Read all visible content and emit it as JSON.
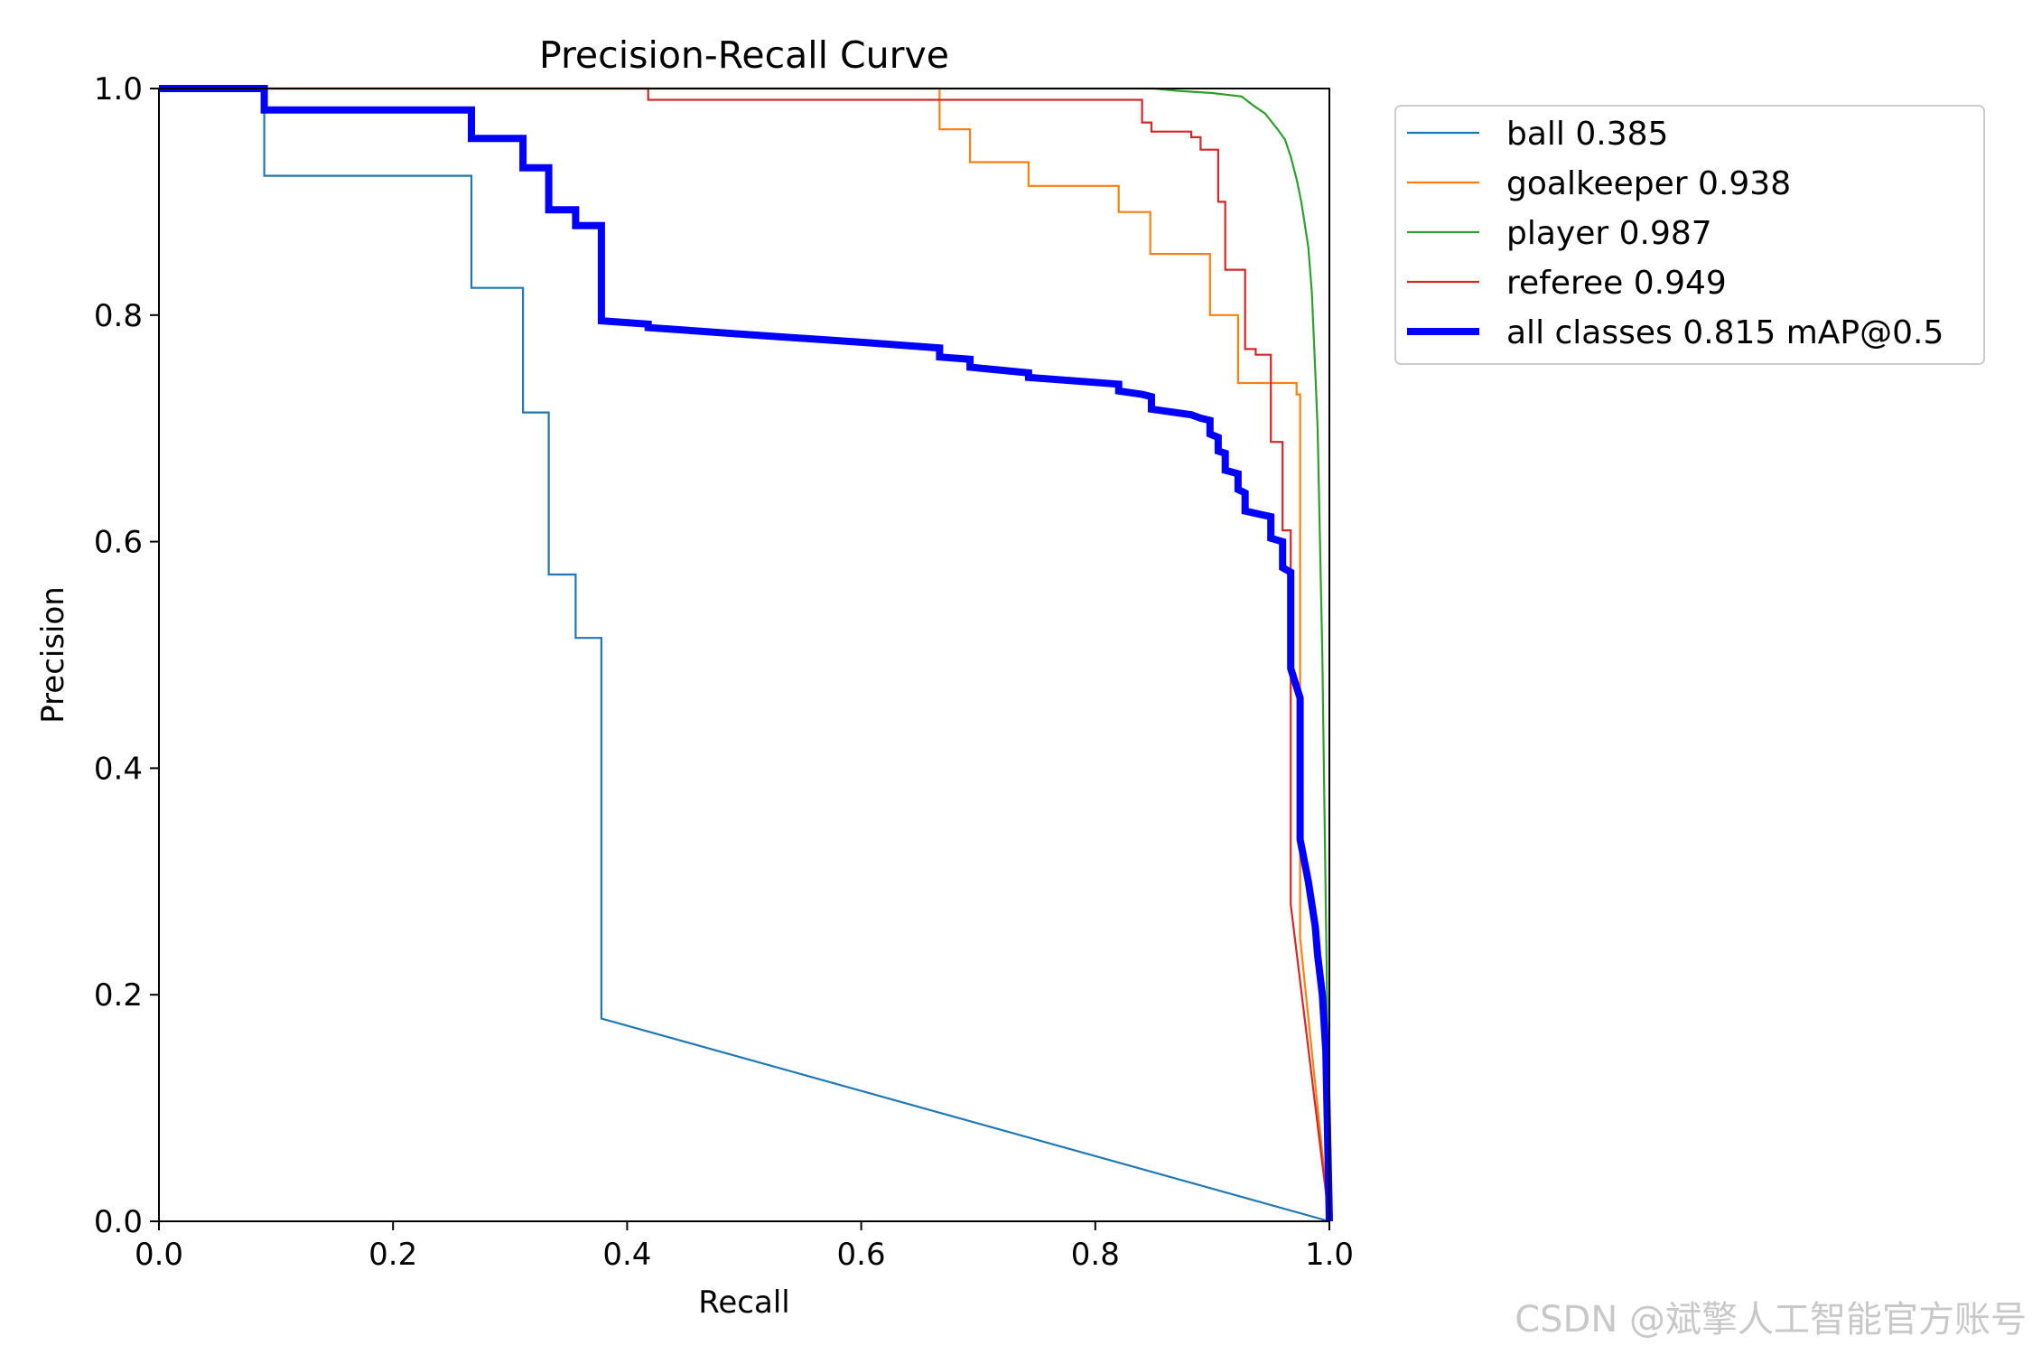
{
  "chart_data": {
    "type": "line",
    "title": "Precision-Recall Curve",
    "xlabel": "Recall",
    "ylabel": "Precision",
    "xlim": [
      0.0,
      1.0
    ],
    "ylim": [
      0.0,
      1.0
    ],
    "xticks": [
      "0.0",
      "0.2",
      "0.4",
      "0.6",
      "0.8",
      "1.0"
    ],
    "yticks": [
      "0.0",
      "0.2",
      "0.4",
      "0.6",
      "0.8",
      "1.0"
    ],
    "grid": false,
    "legend_position": "outside-right-top",
    "series": [
      {
        "name": "ball 0.385",
        "color": "#1f77b4",
        "width": "thin",
        "points": [
          [
            0.0,
            1.0
          ],
          [
            0.09,
            1.0
          ],
          [
            0.09,
            0.923
          ],
          [
            0.267,
            0.923
          ],
          [
            0.267,
            0.824
          ],
          [
            0.311,
            0.824
          ],
          [
            0.311,
            0.714
          ],
          [
            0.333,
            0.714
          ],
          [
            0.333,
            0.571
          ],
          [
            0.356,
            0.571
          ],
          [
            0.356,
            0.515
          ],
          [
            0.378,
            0.515
          ],
          [
            0.378,
            0.179
          ],
          [
            1.0,
            0.0
          ]
        ]
      },
      {
        "name": "goalkeeper 0.938",
        "color": "#ff7f0e",
        "width": "thin",
        "points": [
          [
            0.0,
            1.0
          ],
          [
            0.667,
            1.0
          ],
          [
            0.667,
            0.964
          ],
          [
            0.693,
            0.964
          ],
          [
            0.693,
            0.935
          ],
          [
            0.743,
            0.935
          ],
          [
            0.743,
            0.914
          ],
          [
            0.82,
            0.914
          ],
          [
            0.82,
            0.891
          ],
          [
            0.847,
            0.891
          ],
          [
            0.847,
            0.854
          ],
          [
            0.898,
            0.854
          ],
          [
            0.898,
            0.8
          ],
          [
            0.922,
            0.8
          ],
          [
            0.922,
            0.74
          ],
          [
            0.972,
            0.74
          ],
          [
            0.972,
            0.73
          ],
          [
            0.975,
            0.73
          ],
          [
            0.975,
            0.25
          ],
          [
            1.0,
            0.0
          ]
        ]
      },
      {
        "name": "player 0.987",
        "color": "#2ca02c",
        "width": "thin",
        "points": [
          [
            0.0,
            1.0
          ],
          [
            0.85,
            1.0
          ],
          [
            0.87,
            0.998
          ],
          [
            0.9,
            0.996
          ],
          [
            0.925,
            0.993
          ],
          [
            0.935,
            0.985
          ],
          [
            0.945,
            0.978
          ],
          [
            0.955,
            0.965
          ],
          [
            0.962,
            0.955
          ],
          [
            0.967,
            0.94
          ],
          [
            0.972,
            0.92
          ],
          [
            0.976,
            0.9
          ],
          [
            0.979,
            0.88
          ],
          [
            0.982,
            0.86
          ],
          [
            0.985,
            0.82
          ],
          [
            0.988,
            0.75
          ],
          [
            0.99,
            0.7
          ],
          [
            0.992,
            0.6
          ],
          [
            0.994,
            0.5
          ],
          [
            0.996,
            0.35
          ],
          [
            0.998,
            0.2
          ],
          [
            1.0,
            0.0
          ]
        ]
      },
      {
        "name": "referee 0.949",
        "color": "#d62728",
        "width": "thin",
        "points": [
          [
            0.0,
            1.0
          ],
          [
            0.418,
            1.0
          ],
          [
            0.418,
            0.99
          ],
          [
            0.84,
            0.99
          ],
          [
            0.84,
            0.97
          ],
          [
            0.848,
            0.97
          ],
          [
            0.848,
            0.962
          ],
          [
            0.882,
            0.962
          ],
          [
            0.882,
            0.957
          ],
          [
            0.89,
            0.957
          ],
          [
            0.89,
            0.946
          ],
          [
            0.905,
            0.946
          ],
          [
            0.905,
            0.9
          ],
          [
            0.911,
            0.9
          ],
          [
            0.911,
            0.84
          ],
          [
            0.928,
            0.84
          ],
          [
            0.928,
            0.77
          ],
          [
            0.937,
            0.77
          ],
          [
            0.937,
            0.765
          ],
          [
            0.95,
            0.765
          ],
          [
            0.95,
            0.688
          ],
          [
            0.96,
            0.688
          ],
          [
            0.96,
            0.61
          ],
          [
            0.967,
            0.61
          ],
          [
            0.967,
            0.28
          ],
          [
            1.0,
            0.0
          ]
        ]
      },
      {
        "name": "all classes 0.815 mAP@0.5",
        "color": "#0000ff",
        "width": "thick",
        "points": [
          [
            0.0,
            1.0
          ],
          [
            0.09,
            1.0
          ],
          [
            0.09,
            0.981
          ],
          [
            0.267,
            0.981
          ],
          [
            0.267,
            0.956
          ],
          [
            0.311,
            0.956
          ],
          [
            0.311,
            0.93
          ],
          [
            0.333,
            0.93
          ],
          [
            0.333,
            0.893
          ],
          [
            0.356,
            0.893
          ],
          [
            0.356,
            0.879
          ],
          [
            0.378,
            0.879
          ],
          [
            0.378,
            0.795
          ],
          [
            0.418,
            0.792
          ],
          [
            0.418,
            0.789
          ],
          [
            0.5,
            0.783
          ],
          [
            0.6,
            0.776
          ],
          [
            0.667,
            0.771
          ],
          [
            0.667,
            0.763
          ],
          [
            0.693,
            0.761
          ],
          [
            0.693,
            0.754
          ],
          [
            0.743,
            0.749
          ],
          [
            0.743,
            0.745
          ],
          [
            0.82,
            0.739
          ],
          [
            0.82,
            0.733
          ],
          [
            0.84,
            0.73
          ],
          [
            0.848,
            0.728
          ],
          [
            0.848,
            0.717
          ],
          [
            0.882,
            0.712
          ],
          [
            0.89,
            0.709
          ],
          [
            0.898,
            0.707
          ],
          [
            0.898,
            0.695
          ],
          [
            0.905,
            0.692
          ],
          [
            0.905,
            0.68
          ],
          [
            0.911,
            0.678
          ],
          [
            0.911,
            0.663
          ],
          [
            0.922,
            0.66
          ],
          [
            0.922,
            0.646
          ],
          [
            0.928,
            0.643
          ],
          [
            0.928,
            0.627
          ],
          [
            0.937,
            0.625
          ],
          [
            0.95,
            0.622
          ],
          [
            0.95,
            0.603
          ],
          [
            0.96,
            0.6
          ],
          [
            0.96,
            0.577
          ],
          [
            0.967,
            0.573
          ],
          [
            0.967,
            0.488
          ],
          [
            0.975,
            0.462
          ],
          [
            0.975,
            0.337
          ],
          [
            0.982,
            0.3
          ],
          [
            0.988,
            0.26
          ],
          [
            0.99,
            0.235
          ],
          [
            0.994,
            0.2
          ],
          [
            0.997,
            0.15
          ],
          [
            1.0,
            0.0
          ]
        ]
      }
    ]
  },
  "watermark": "CSDN @斌擎人工智能官方账号"
}
